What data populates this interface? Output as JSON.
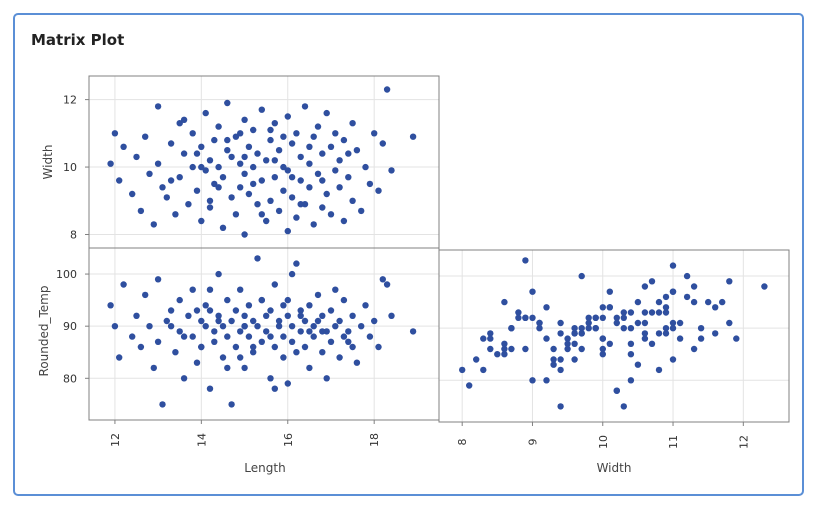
{
  "title": "Matrix Plot",
  "chart_data": {
    "type": "scatter",
    "title": "Matrix Plot",
    "variables": [
      "Length",
      "Width",
      "Rounded_Temp"
    ],
    "marker_color": "#2f4f9f",
    "grid": true,
    "panels": [
      {
        "x": "Length",
        "y": "Width",
        "xlim": [
          11.4,
          19.5
        ],
        "ylim": [
          7.6,
          12.7
        ],
        "yticks": [
          8,
          10,
          12
        ]
      },
      {
        "x": "Length",
        "y": "Rounded_Temp",
        "xlim": [
          11.4,
          19.5
        ],
        "ylim": [
          72,
          105
        ],
        "xticks": [
          12,
          14,
          16,
          18
        ],
        "yticks": [
          80,
          90,
          100
        ]
      },
      {
        "x": "Width",
        "y": "Rounded_Temp",
        "xlim": [
          7.67,
          12.65
        ],
        "ylim": [
          72,
          105
        ],
        "xticks": [
          8,
          9,
          10,
          11,
          12
        ]
      }
    ],
    "labels": {
      "y_top": "Width",
      "y_bottom": "Rounded_Temp",
      "x_left": "Length",
      "x_right": "Width"
    },
    "points_fields": [
      "Length",
      "Width",
      "Rounded_Temp"
    ],
    "points": [
      [
        18.3,
        12.3,
        98
      ],
      [
        18.9,
        10.9,
        89
      ],
      [
        13.1,
        9.4,
        75
      ],
      [
        11.9,
        10.1,
        94
      ],
      [
        12.0,
        11.0,
        90
      ],
      [
        12.1,
        9.6,
        84
      ],
      [
        12.2,
        10.6,
        98
      ],
      [
        12.4,
        9.2,
        88
      ],
      [
        12.5,
        10.3,
        92
      ],
      [
        12.6,
        8.7,
        86
      ],
      [
        12.7,
        10.9,
        96
      ],
      [
        12.8,
        9.8,
        90
      ],
      [
        12.9,
        8.3,
        82
      ],
      [
        13.0,
        11.8,
        99
      ],
      [
        13.0,
        10.1,
        87
      ],
      [
        13.2,
        9.1,
        91
      ],
      [
        13.3,
        10.7,
        93
      ],
      [
        13.4,
        8.6,
        85
      ],
      [
        13.5,
        11.3,
        95
      ],
      [
        13.5,
        9.7,
        89
      ],
      [
        13.6,
        10.4,
        80
      ],
      [
        13.7,
        8.9,
        92
      ],
      [
        13.8,
        10.0,
        88
      ],
      [
        13.8,
        11.0,
        97
      ],
      [
        13.9,
        9.3,
        83
      ],
      [
        14.0,
        10.6,
        91
      ],
      [
        14.0,
        8.4,
        86
      ],
      [
        14.1,
        11.6,
        94
      ],
      [
        14.1,
        9.9,
        90
      ],
      [
        14.2,
        10.2,
        78
      ],
      [
        14.2,
        8.8,
        93
      ],
      [
        14.3,
        10.8,
        89
      ],
      [
        14.3,
        9.5,
        87
      ],
      [
        14.4,
        11.2,
        100
      ],
      [
        14.4,
        10.0,
        92
      ],
      [
        14.5,
        8.2,
        84
      ],
      [
        14.5,
        9.7,
        90
      ],
      [
        14.6,
        10.5,
        95
      ],
      [
        14.6,
        11.9,
        88
      ],
      [
        14.7,
        9.1,
        91
      ],
      [
        14.7,
        10.3,
        75
      ],
      [
        14.8,
        8.6,
        86
      ],
      [
        14.8,
        10.9,
        93
      ],
      [
        14.9,
        9.4,
        89
      ],
      [
        14.9,
        10.1,
        97
      ],
      [
        15.0,
        11.4,
        90
      ],
      [
        15.0,
        8.0,
        82
      ],
      [
        15.0,
        9.8,
        92
      ],
      [
        15.1,
        10.6,
        88
      ],
      [
        15.1,
        9.2,
        94
      ],
      [
        15.2,
        10.0,
        85
      ],
      [
        15.2,
        11.1,
        91
      ],
      [
        15.3,
        8.9,
        103
      ],
      [
        15.3,
        10.4,
        90
      ],
      [
        15.4,
        9.6,
        87
      ],
      [
        15.4,
        11.7,
        95
      ],
      [
        15.5,
        8.4,
        89
      ],
      [
        15.5,
        10.2,
        92
      ],
      [
        15.6,
        9.0,
        80
      ],
      [
        15.6,
        10.8,
        93
      ],
      [
        15.7,
        9.7,
        86
      ],
      [
        15.7,
        11.3,
        98
      ],
      [
        15.8,
        8.7,
        90
      ],
      [
        15.8,
        10.5,
        91
      ],
      [
        15.9,
        9.3,
        84
      ],
      [
        15.9,
        10.0,
        88
      ],
      [
        16.0,
        11.5,
        95
      ],
      [
        16.0,
        8.1,
        79
      ],
      [
        16.0,
        9.9,
        92
      ],
      [
        16.1,
        10.7,
        87
      ],
      [
        16.1,
        9.1,
        90
      ],
      [
        16.2,
        11.0,
        102
      ],
      [
        16.2,
        8.5,
        85
      ],
      [
        16.3,
        10.3,
        93
      ],
      [
        16.3,
        9.6,
        89
      ],
      [
        16.4,
        11.8,
        91
      ],
      [
        16.4,
        8.9,
        86
      ],
      [
        16.5,
        10.1,
        94
      ],
      [
        16.5,
        9.4,
        82
      ],
      [
        16.6,
        10.9,
        90
      ],
      [
        16.6,
        8.3,
        88
      ],
      [
        16.7,
        11.2,
        96
      ],
      [
        16.7,
        9.8,
        91
      ],
      [
        16.8,
        10.4,
        85
      ],
      [
        16.8,
        8.8,
        92
      ],
      [
        16.9,
        11.6,
        89
      ],
      [
        16.9,
        9.2,
        80
      ],
      [
        17.0,
        10.6,
        93
      ],
      [
        17.0,
        8.6,
        87
      ],
      [
        17.1,
        9.9,
        90
      ],
      [
        17.1,
        11.0,
        97
      ],
      [
        17.2,
        9.4,
        84
      ],
      [
        17.2,
        10.2,
        91
      ],
      [
        17.3,
        8.4,
        88
      ],
      [
        17.3,
        10.8,
        95
      ],
      [
        17.4,
        9.7,
        89
      ],
      [
        17.5,
        11.3,
        86
      ],
      [
        17.5,
        9.0,
        92
      ],
      [
        17.6,
        10.5,
        83
      ],
      [
        17.7,
        8.7,
        90
      ],
      [
        17.8,
        10.0,
        94
      ],
      [
        17.9,
        9.5,
        88
      ],
      [
        18.0,
        11.0,
        91
      ],
      [
        18.1,
        9.3,
        86
      ],
      [
        18.2,
        10.7,
        99
      ],
      [
        18.4,
        9.9,
        92
      ],
      [
        13.6,
        11.4,
        88
      ],
      [
        14.2,
        9.0,
        97
      ],
      [
        14.6,
        10.8,
        82
      ],
      [
        15.2,
        9.5,
        86
      ],
      [
        15.7,
        10.2,
        78
      ],
      [
        16.1,
        9.7,
        100
      ],
      [
        16.5,
        10.6,
        89
      ],
      [
        14.9,
        11.0,
        84
      ],
      [
        15.4,
        8.6,
        95
      ],
      [
        13.9,
        10.4,
        93
      ],
      [
        16.8,
        9.6,
        89
      ],
      [
        15.0,
        10.3,
        90
      ],
      [
        14.4,
        9.4,
        91
      ],
      [
        15.6,
        11.1,
        88
      ],
      [
        16.3,
        8.9,
        92
      ],
      [
        14.0,
        10.0,
        86
      ],
      [
        15.9,
        10.9,
        94
      ],
      [
        13.3,
        9.6,
        90
      ],
      [
        17.4,
        10.4,
        87
      ]
    ]
  }
}
